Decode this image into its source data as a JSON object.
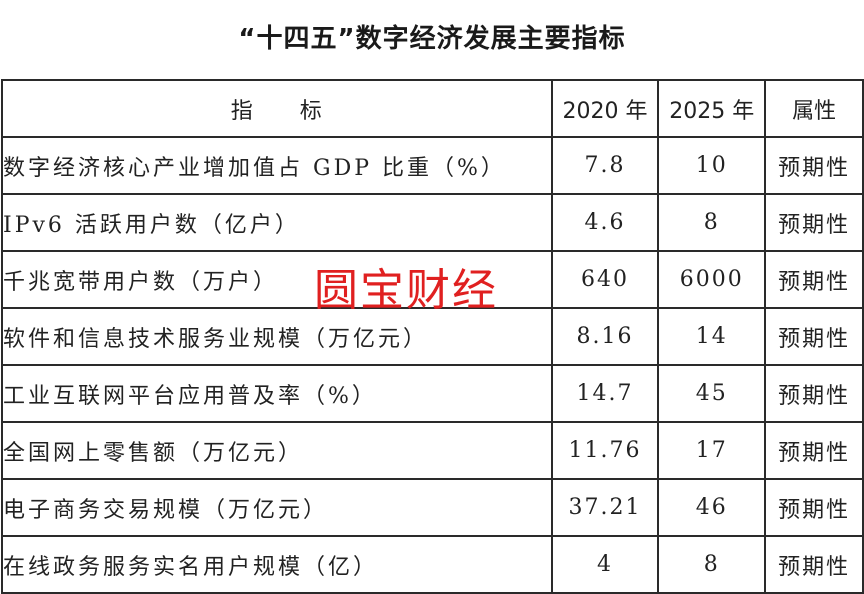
{
  "title": "“十四五”数字经济发展主要指标",
  "table": {
    "headers": {
      "indicator": "指　　标",
      "year2020": "2020 年",
      "year2025": "2025 年",
      "attribute": "属性"
    },
    "rows": [
      {
        "indicator": "数字经济核心产业增加值占 GDP 比重（%）",
        "v2020": "7.8",
        "v2025": "10",
        "attribute": "预期性"
      },
      {
        "indicator": "IPv6 活跃用户数（亿户）",
        "v2020": "4.6",
        "v2025": "8",
        "attribute": "预期性"
      },
      {
        "indicator": "千兆宽带用户数（万户）",
        "v2020": "640",
        "v2025": "6000",
        "attribute": "预期性"
      },
      {
        "indicator": "软件和信息技术服务业规模（万亿元）",
        "v2020": "8.16",
        "v2025": "14",
        "attribute": "预期性"
      },
      {
        "indicator": "工业互联网平台应用普及率（%）",
        "v2020": "14.7",
        "v2025": "45",
        "attribute": "预期性"
      },
      {
        "indicator": "全国网上零售额（万亿元）",
        "v2020": "11.76",
        "v2025": "17",
        "attribute": "预期性"
      },
      {
        "indicator": "电子商务交易规模（万亿元）",
        "v2020": "37.21",
        "v2025": "46",
        "attribute": "预期性"
      },
      {
        "indicator": "在线政务服务实名用户规模（亿）",
        "v2020": "4",
        "v2025": "8",
        "attribute": "预期性"
      }
    ]
  },
  "watermark": "圆宝财经",
  "colors": {
    "watermark": "#e02020",
    "border": "#2a2a2a",
    "text": "#222222"
  }
}
